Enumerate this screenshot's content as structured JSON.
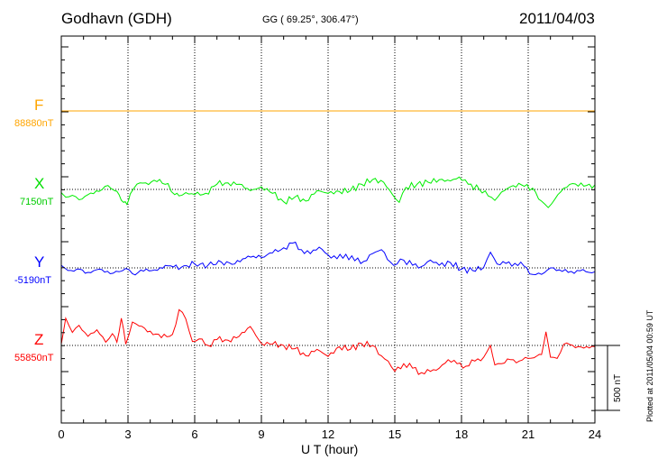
{
  "header": {
    "station": "Godhavn (GDH)",
    "coords": "GG ( 69.25°, 306.47°)",
    "date": "2011/04/03"
  },
  "colors": {
    "F": "#ffa500",
    "X": "#00ee00",
    "Y": "#0000ff",
    "Z": "#ff0000"
  },
  "chart_data": {
    "type": "line",
    "xlabel": "U T (hour)",
    "xlim": [
      0,
      24
    ],
    "xticks": [
      "0",
      "3",
      "6",
      "9",
      "12",
      "15",
      "18",
      "21",
      "24"
    ],
    "scale_label": "500 nT",
    "plotted_note": "Plotted at 2011/05/04 00:59 UT",
    "grid": true,
    "series": [
      {
        "name": "F",
        "baseline": "88880nT",
        "x": [
          0,
          24
        ],
        "y": [
          0,
          0
        ]
      },
      {
        "name": "X",
        "baseline": "7150nT",
        "x": [
          0,
          0.2,
          0.5,
          0.8,
          1.2,
          1.7,
          2.1,
          2.4,
          2.6,
          2.8,
          2.95,
          3.1,
          3.4,
          3.8,
          4.3,
          4.8,
          5.1,
          5.3,
          5.6,
          6.0,
          6.5,
          7.0,
          7.5,
          8.0,
          8.5,
          9.0,
          9.5,
          10.0,
          10.5,
          11.0,
          11.5,
          12.0,
          12.5,
          13.0,
          13.5,
          14.0,
          14.5,
          14.9,
          15.2,
          15.5,
          16.0,
          16.5,
          17.0,
          17.5,
          17.9,
          18.3,
          18.8,
          19.2,
          19.5,
          19.8,
          20.2,
          20.7,
          21.2,
          21.6,
          21.9,
          22.2,
          22.6,
          23.0,
          23.5,
          24.0
        ],
        "y": [
          -25,
          -60,
          -45,
          -80,
          -40,
          -15,
          30,
          -10,
          -40,
          -100,
          -115,
          -35,
          40,
          50,
          60,
          45,
          -40,
          -50,
          -25,
          -40,
          -30,
          40,
          50,
          40,
          -10,
          20,
          -30,
          -95,
          -60,
          -90,
          -10,
          -30,
          -15,
          -10,
          40,
          75,
          55,
          -40,
          -100,
          15,
          40,
          55,
          75,
          65,
          95,
          40,
          0,
          -50,
          -85,
          -20,
          20,
          35,
          10,
          -90,
          -140,
          -75,
          10,
          45,
          25,
          35
        ]
      },
      {
        "name": "Y",
        "baseline": "-5190nT",
        "x": [
          0,
          0.3,
          0.7,
          1.2,
          1.7,
          2.2,
          2.6,
          2.9,
          3.2,
          3.7,
          4.2,
          4.8,
          5.4,
          6.0,
          6.6,
          7.2,
          7.8,
          8.4,
          9.0,
          9.5,
          10.0,
          10.4,
          10.8,
          11.2,
          11.6,
          12.0,
          12.4,
          12.8,
          13.2,
          13.6,
          14.0,
          14.4,
          14.8,
          15.1,
          15.4,
          15.8,
          16.2,
          16.6,
          17.0,
          17.5,
          18.0,
          18.5,
          19.0,
          19.3,
          19.6,
          20.0,
          20.4,
          20.8,
          21.2,
          21.6,
          22.0,
          22.4,
          22.8,
          23.2,
          23.6,
          24.0
        ],
        "y": [
          20,
          -20,
          -10,
          -35,
          -10,
          -45,
          -30,
          -5,
          -45,
          -25,
          -15,
          15,
          5,
          30,
          20,
          45,
          30,
          90,
          80,
          115,
          155,
          190,
          140,
          110,
          160,
          100,
          70,
          105,
          55,
          50,
          110,
          140,
          45,
          30,
          60,
          20,
          10,
          60,
          20,
          40,
          -10,
          -20,
          5,
          120,
          30,
          35,
          35,
          15,
          -50,
          -50,
          0,
          -15,
          -35,
          -20,
          -30,
          -30
        ]
      },
      {
        "name": "Z",
        "baseline": "55850nT",
        "x": [
          0,
          0.2,
          0.5,
          0.8,
          1.2,
          1.6,
          2.0,
          2.3,
          2.5,
          2.7,
          2.9,
          3.2,
          3.5,
          4.0,
          4.5,
          5.0,
          5.3,
          5.6,
          5.9,
          6.2,
          6.6,
          7.0,
          7.5,
          8.0,
          8.5,
          9.0,
          9.5,
          10.0,
          10.5,
          11.0,
          11.5,
          12.0,
          12.5,
          13.0,
          13.5,
          14.0,
          14.4,
          14.7,
          15.0,
          15.4,
          15.8,
          16.2,
          16.6,
          17.0,
          17.4,
          17.8,
          18.2,
          18.6,
          19.0,
          19.3,
          19.5,
          19.8,
          20.2,
          20.6,
          21.0,
          21.4,
          21.6,
          21.8,
          22.0,
          22.3,
          22.6,
          23.0,
          23.5,
          24.0
        ],
        "y": [
          10,
          210,
          100,
          155,
          70,
          120,
          25,
          90,
          25,
          210,
          10,
          180,
          150,
          110,
          60,
          85,
          275,
          205,
          30,
          50,
          0,
          45,
          40,
          70,
          145,
          15,
          10,
          0,
          -25,
          -80,
          -30,
          -85,
          -10,
          -30,
          15,
          0,
          -80,
          -120,
          -200,
          -140,
          -175,
          -210,
          -200,
          -175,
          -110,
          -140,
          -160,
          -120,
          -90,
          0,
          -150,
          -140,
          -110,
          -120,
          -100,
          -80,
          -70,
          105,
          -90,
          -100,
          10,
          0,
          -20,
          -10
        ]
      }
    ]
  }
}
